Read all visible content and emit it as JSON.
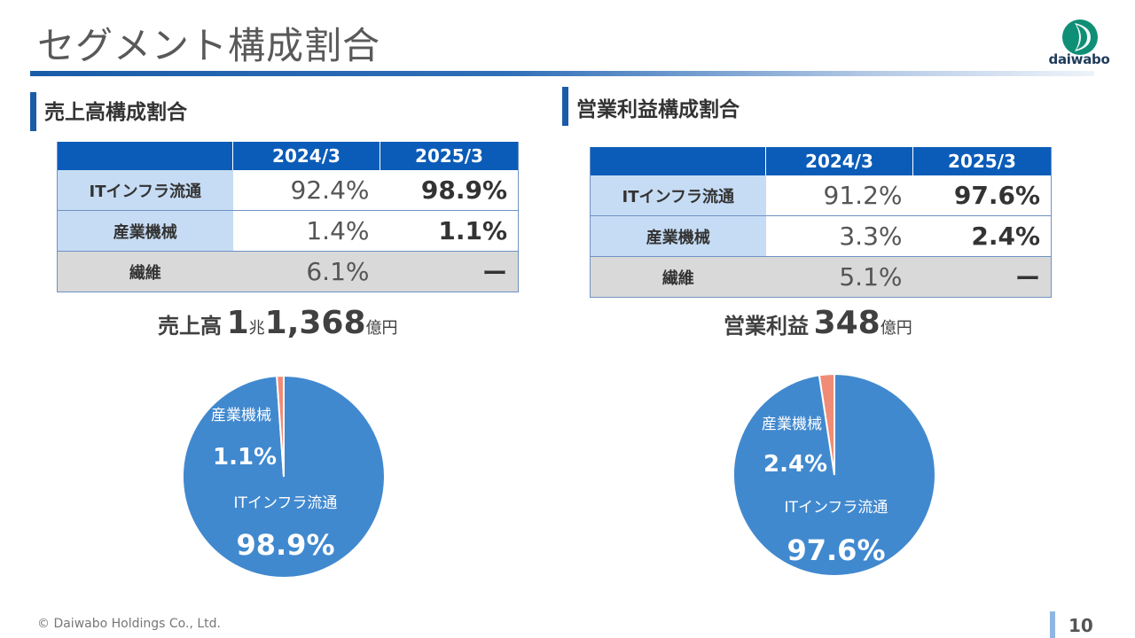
{
  "page": {
    "title": "セグメント構成割合",
    "logo_text": "daiwabo",
    "footer": "© Daiwabo Holdings Co., Ltd.",
    "page_number": "10"
  },
  "colors": {
    "blue": "#0b5cb8",
    "pie_blue": "#4189cf",
    "pie_salmon": "#f08b77",
    "light_blue": "#c6dcf4",
    "gray": "#d9d9d9"
  },
  "sales": {
    "heading": "売上高構成割合",
    "headers": [
      "",
      "2024/3",
      "2025/3"
    ],
    "rows": [
      {
        "label": "ITインフラ流通",
        "v2024": "92.4%",
        "v2025": "98.9%"
      },
      {
        "label": "産業機械",
        "v2024": "1.4%",
        "v2025": "1.1%"
      },
      {
        "label": "繊維",
        "v2024": "6.1%",
        "v2025": "ー"
      }
    ],
    "total": {
      "label": "売上高",
      "n1": "1",
      "u1": "兆",
      "n2": "1,368",
      "u2": "億円"
    }
  },
  "profit": {
    "heading": "営業利益構成割合",
    "headers": [
      "",
      "2024/3",
      "2025/3"
    ],
    "rows": [
      {
        "label": "ITインフラ流通",
        "v2024": "91.2%",
        "v2025": "97.6%"
      },
      {
        "label": "産業機械",
        "v2024": "3.3%",
        "v2025": "2.4%"
      },
      {
        "label": "繊維",
        "v2024": "5.1%",
        "v2025": "ー"
      }
    ],
    "total": {
      "label": "営業利益",
      "n1": "348",
      "u1": "億円"
    }
  },
  "chart_data": [
    {
      "type": "pie",
      "title": "",
      "slices": [
        {
          "label": "ITインフラ流通",
          "value": 98.9,
          "display": "98.9%",
          "color": "#4189cf"
        },
        {
          "label": "産業機械",
          "value": 1.1,
          "display": "1.1%",
          "color": "#f08b77"
        }
      ]
    },
    {
      "type": "pie",
      "title": "",
      "slices": [
        {
          "label": "ITインフラ流通",
          "value": 97.6,
          "display": "97.6%",
          "color": "#4189cf"
        },
        {
          "label": "産業機械",
          "value": 2.4,
          "display": "2.4%",
          "color": "#f08b77"
        }
      ]
    }
  ]
}
